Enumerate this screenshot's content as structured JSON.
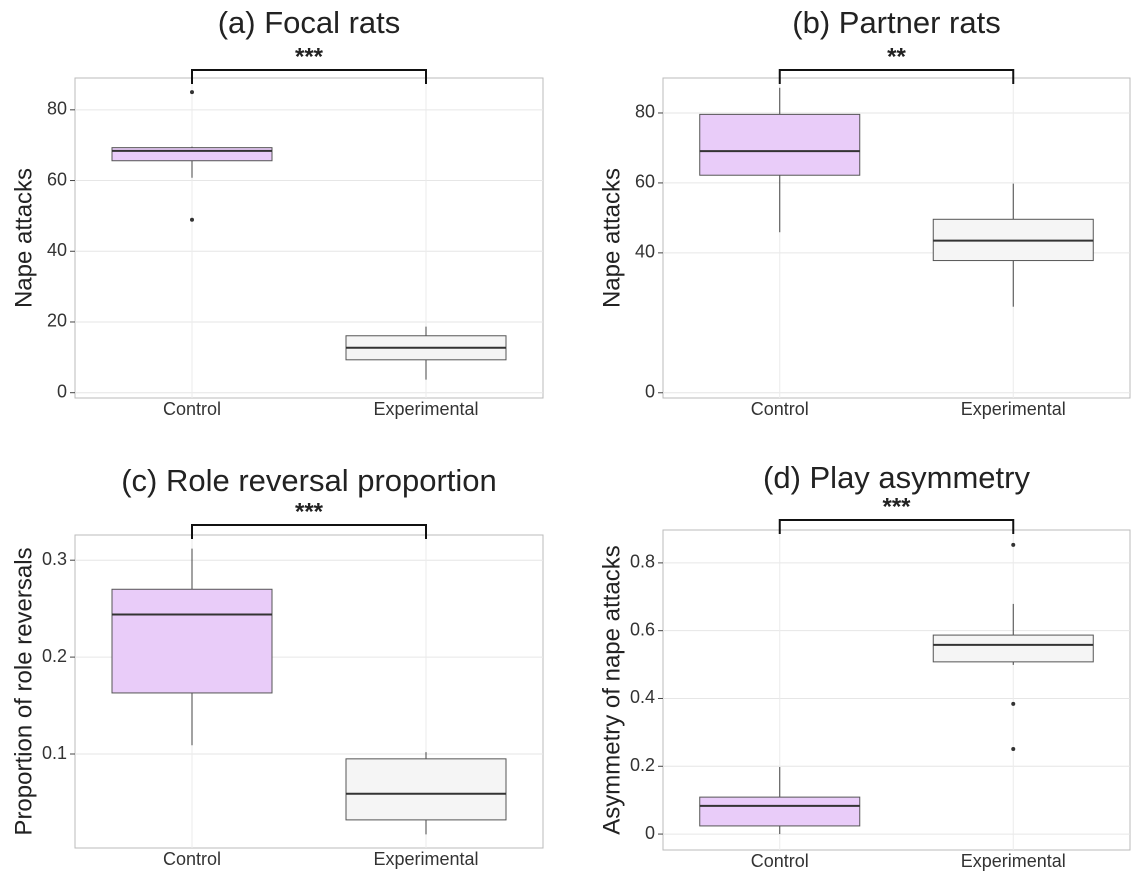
{
  "chart_data": [
    {
      "type": "box",
      "title": "(a) Focal rats",
      "ylabel": "Nape attacks",
      "annotation": "***",
      "categories": [
        "Control",
        "Experimental"
      ],
      "colors": [
        "#e9ccf9",
        "#f5f5f5"
      ],
      "stats": [
        {
          "whisker_low": 60.8,
          "q1": 65.6,
          "median": 68.4,
          "q3": 69.3,
          "whisker_high": 69.6,
          "outliers": [
            85,
            48.9
          ]
        },
        {
          "whisker_low": 3.7,
          "q1": 9.3,
          "median": 12.7,
          "q3": 16.1,
          "whisker_high": 18.7,
          "outliers": []
        }
      ],
      "ylim": [
        -1.5,
        89
      ],
      "yticks": [
        0,
        20,
        40,
        60,
        80
      ],
      "grid": true
    },
    {
      "type": "box",
      "title": "(b) Partner rats",
      "ylabel": "Nape attacks",
      "annotation": "**",
      "categories": [
        "Control",
        "Experimental"
      ],
      "colors": [
        "#e9ccf9",
        "#f5f5f5"
      ],
      "stats": [
        {
          "whisker_low": 45.9,
          "q1": 62.2,
          "median": 69.1,
          "q3": 79.6,
          "whisker_high": 87.2,
          "outliers": []
        },
        {
          "whisker_low": 24.6,
          "q1": 37.8,
          "median": 43.5,
          "q3": 49.6,
          "whisker_high": 59.8,
          "outliers": []
        }
      ],
      "ylim": [
        -1.5,
        90
      ],
      "yticks": [
        0,
        40,
        60,
        80
      ],
      "grid": true
    },
    {
      "type": "box",
      "title": "(c) Role reversal proportion",
      "ylabel": "Proportion of role reversals",
      "annotation": "***",
      "categories": [
        "Control",
        "Experimental"
      ],
      "colors": [
        "#e9ccf9",
        "#f5f5f5"
      ],
      "stats": [
        {
          "whisker_low": 0.109,
          "q1": 0.163,
          "median": 0.244,
          "q3": 0.27,
          "whisker_high": 0.312,
          "outliers": []
        },
        {
          "whisker_low": 0.017,
          "q1": 0.032,
          "median": 0.059,
          "q3": 0.095,
          "whisker_high": 0.102,
          "outliers": []
        }
      ],
      "ylim": [
        0.003,
        0.326
      ],
      "yticks": [
        0.1,
        0.2,
        0.3
      ],
      "grid": true
    },
    {
      "type": "box",
      "title": "(d) Play asymmetry",
      "ylabel": "Asymmetry of nape attacks",
      "annotation": "***",
      "categories": [
        "Control",
        "Experimental"
      ],
      "colors": [
        "#e9ccf9",
        "#f5f5f5"
      ],
      "stats": [
        {
          "whisker_low": 0,
          "q1": 0.024,
          "median": 0.083,
          "q3": 0.109,
          "whisker_high": 0.198,
          "outliers": []
        },
        {
          "whisker_low": 0.499,
          "q1": 0.508,
          "median": 0.558,
          "q3": 0.587,
          "whisker_high": 0.679,
          "outliers": [
            0.853,
            0.384,
            0.251
          ]
        }
      ],
      "ylim": [
        -0.047,
        0.897
      ],
      "yticks": [
        0,
        0.2,
        0.4,
        0.6,
        0.8
      ],
      "grid": true
    }
  ]
}
